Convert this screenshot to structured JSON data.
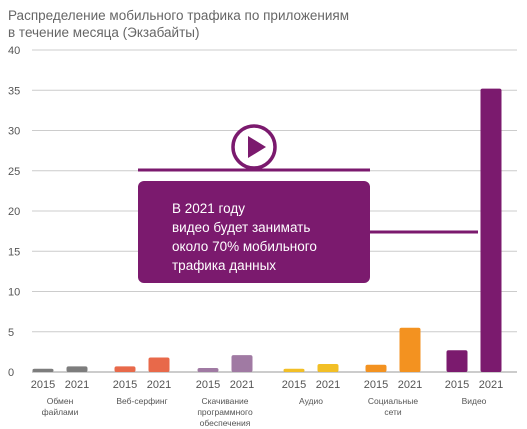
{
  "title_lines": [
    "Распределение мобильного трафика по приложениям",
    "в течение месяца (Экзабайты)"
  ],
  "callout": {
    "lines": [
      "В 2021 году",
      "видео будет занимать",
      "около 70% мобильного",
      "трафика данных"
    ]
  },
  "colors": {
    "accent": "#7b1a6e",
    "grid": "#cccccc",
    "text": "#555555"
  },
  "icon": "play-icon",
  "chart_data": {
    "type": "bar",
    "title": "Распределение мобильного трафика по приложениям в течение месяца (Экзабайты)",
    "xlabel": "",
    "ylabel": "",
    "ylim": [
      0,
      40
    ],
    "yticks": [
      0,
      5,
      10,
      15,
      20,
      25,
      30,
      35,
      40
    ],
    "grid": true,
    "groups": [
      {
        "label": [
          "Обмен",
          "файлами"
        ],
        "color_2015": "#7d7d7d",
        "color_2021": "#7d7d7d",
        "bars": [
          {
            "year": "2015",
            "value": 0.4
          },
          {
            "year": "2021",
            "value": 0.7
          }
        ]
      },
      {
        "label": [
          "Веб-серфинг"
        ],
        "color_2015": "#e8694a",
        "color_2021": "#e8694a",
        "bars": [
          {
            "year": "2015",
            "value": 0.7
          },
          {
            "year": "2021",
            "value": 1.8
          }
        ]
      },
      {
        "label": [
          "Скачивание",
          "программного",
          "обеспечения"
        ],
        "color_2015": "#a07aa3",
        "color_2021": "#a07aa3",
        "bars": [
          {
            "year": "2015",
            "value": 0.5
          },
          {
            "year": "2021",
            "value": 2.1
          }
        ]
      },
      {
        "label": [
          "Аудио"
        ],
        "color_2015": "#f2bf26",
        "color_2021": "#f2bf26",
        "bars": [
          {
            "year": "2015",
            "value": 0.4
          },
          {
            "year": "2021",
            "value": 1.0
          }
        ]
      },
      {
        "label": [
          "Социальные",
          "сети"
        ],
        "color_2015": "#f39220",
        "color_2021": "#f39220",
        "bars": [
          {
            "year": "2015",
            "value": 0.9
          },
          {
            "year": "2021",
            "value": 5.5
          }
        ]
      },
      {
        "label": [
          "Видео"
        ],
        "color_2015": "#7b1a6e",
        "color_2021": "#7b1a6e",
        "bars": [
          {
            "year": "2015",
            "value": 2.7
          },
          {
            "year": "2021",
            "value": 35.2
          }
        ]
      }
    ]
  }
}
